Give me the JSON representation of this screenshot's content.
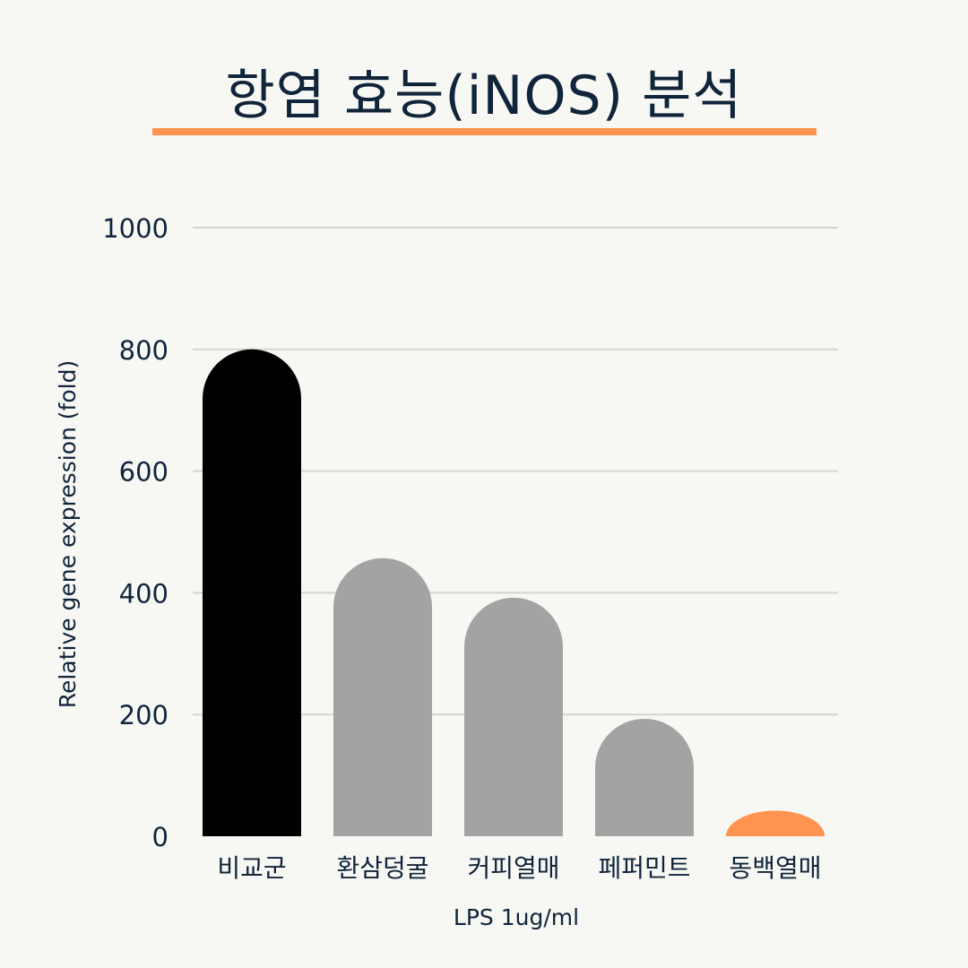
{
  "chart_data": {
    "type": "bar",
    "title": "항염 효능(iNOS) 분석",
    "xlabel": "LPS 1ug/ml",
    "ylabel": "Relative gene expression (fold)",
    "ylim": [
      0,
      1000
    ],
    "yticks": [
      "0",
      "200",
      "400",
      "600",
      "800",
      "1000"
    ],
    "grid": true,
    "categories": [
      "비교군",
      "환삼덩굴",
      "커피열매",
      "페퍼민트",
      "동백열매"
    ],
    "values": [
      800,
      457,
      392,
      193,
      42
    ],
    "colors": [
      "#000000",
      "#a3a3a3",
      "#a3a3a3",
      "#a3a3a3",
      "#ff9450"
    ]
  },
  "colors": {
    "accent": "#ff9450",
    "text": "#10243a",
    "grid": "#d4d4d0",
    "background": "#f7f7f4"
  }
}
